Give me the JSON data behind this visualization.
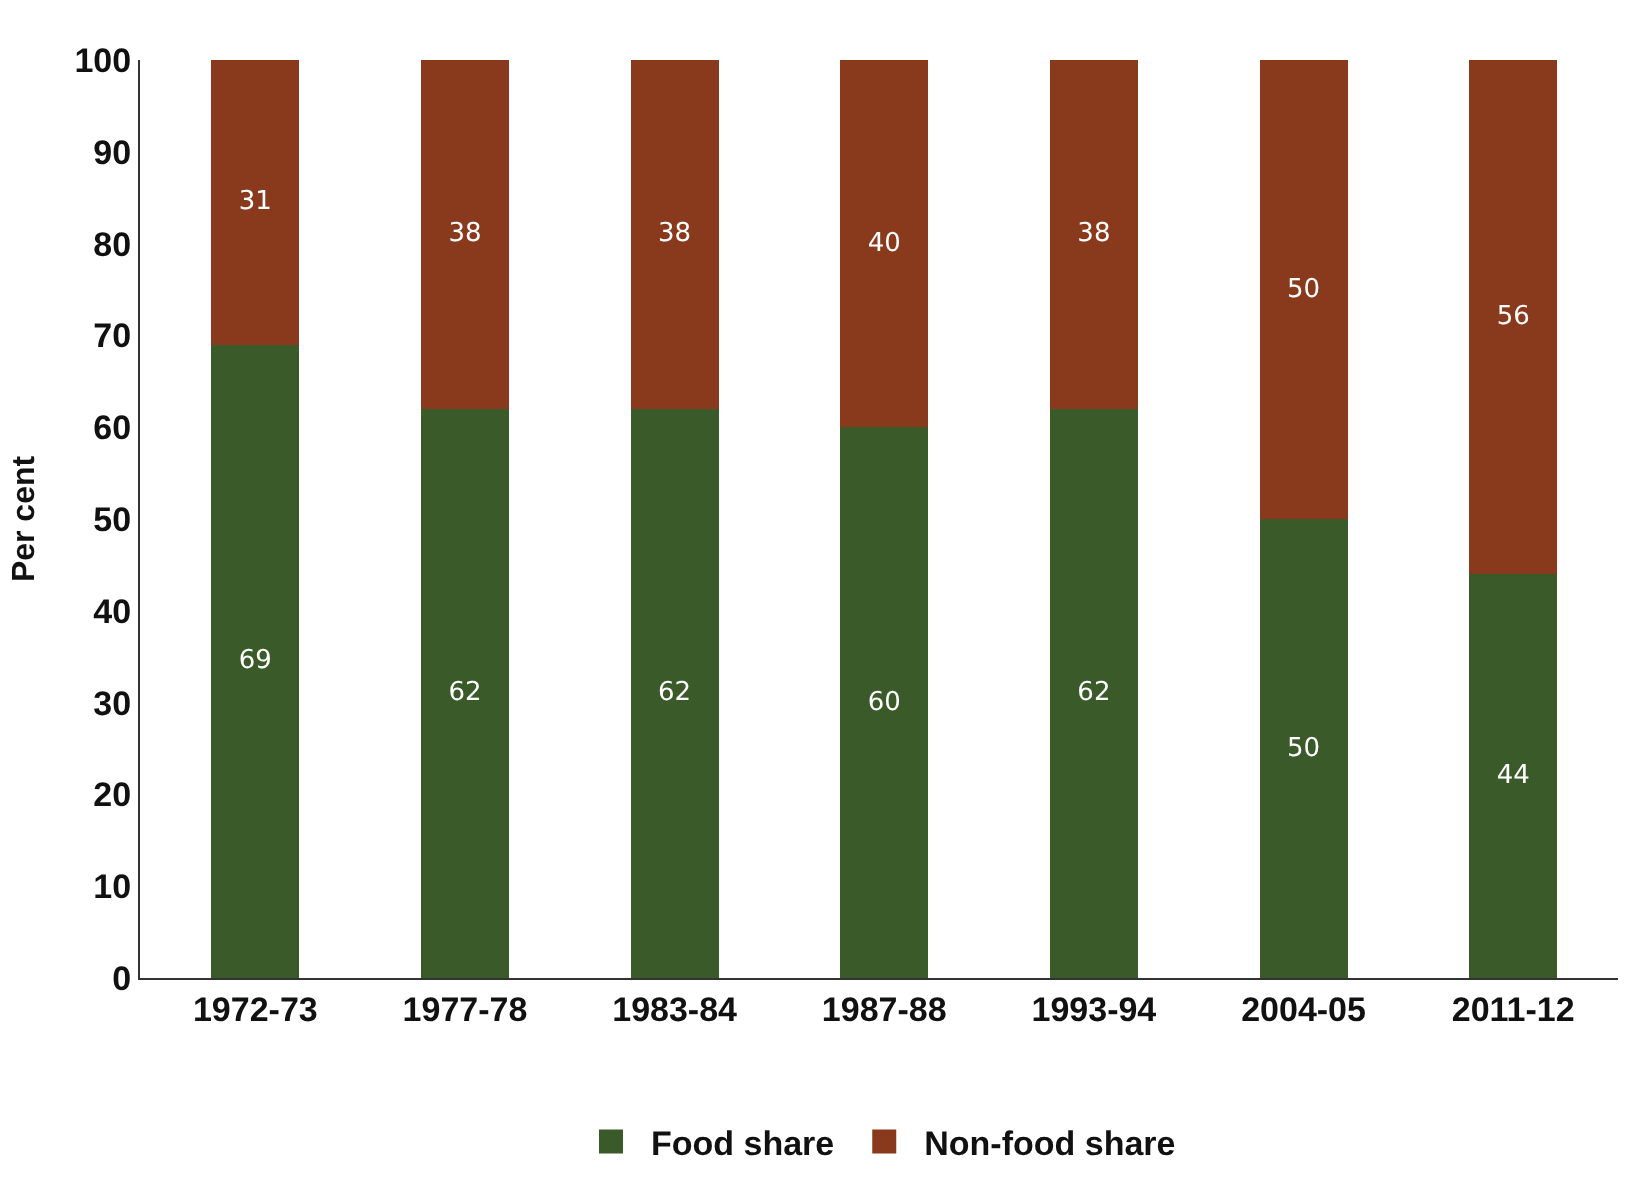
{
  "chart_data": {
    "type": "bar",
    "stacked": true,
    "ylabel": "Per cent",
    "categories": [
      "1972-73",
      "1977-78",
      "1983-84",
      "1987-88",
      "1993-94",
      "2004-05",
      "2011-12"
    ],
    "series": [
      {
        "name": "Food share",
        "color": "#3a5a2a",
        "values": [
          69,
          62,
          62,
          60,
          62,
          50,
          44
        ]
      },
      {
        "name": "Non-food share",
        "color": "#8a3a1c",
        "values": [
          31,
          38,
          38,
          40,
          38,
          50,
          56
        ]
      }
    ],
    "ylim": [
      0,
      100
    ],
    "yticks": [
      0,
      10,
      20,
      30,
      40,
      50,
      60,
      70,
      80,
      90,
      100
    ],
    "legend": "bottom",
    "data_labels": true
  }
}
